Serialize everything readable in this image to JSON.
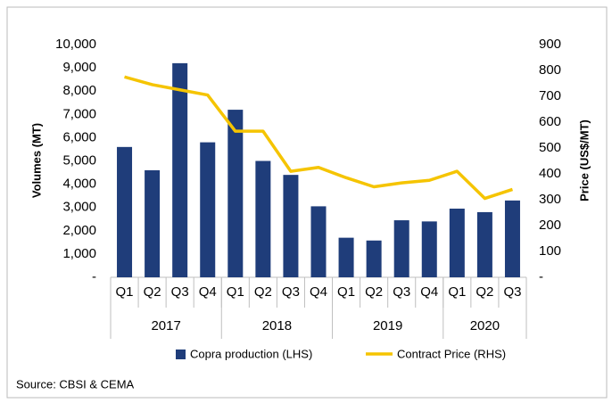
{
  "chart_data": {
    "type": "bar_line",
    "groups": [
      {
        "label": "2017",
        "categories": [
          "Q1",
          "Q2",
          "Q3",
          "Q4"
        ]
      },
      {
        "label": "2018",
        "categories": [
          "Q1",
          "Q2",
          "Q3",
          "Q4"
        ]
      },
      {
        "label": "2019",
        "categories": [
          "Q1",
          "Q2",
          "Q3",
          "Q4"
        ]
      },
      {
        "label": "2020",
        "categories": [
          "Q1",
          "Q2",
          "Q3"
        ]
      }
    ],
    "series": [
      {
        "name": "Copra production (LHS)",
        "color": "#1f3d7a",
        "type": "bar",
        "axis": "y",
        "values": [
          5600,
          4600,
          9200,
          5800,
          7200,
          5000,
          4400,
          3050,
          1700,
          1580,
          2450,
          2400,
          2950,
          2800,
          3300
        ]
      },
      {
        "name": "Contract Price (RHS)",
        "color": "#f5c400",
        "type": "line",
        "axis": "y2",
        "values": [
          775,
          745,
          725,
          705,
          565,
          565,
          410,
          425,
          385,
          350,
          365,
          375,
          410,
          305,
          340
        ]
      }
    ],
    "ylabel": "Volumes (MT)",
    "y2label": "Price (US$/MT)",
    "ylim": [
      0,
      10000
    ],
    "yticks": [
      {
        "value": 0,
        "label": "-"
      },
      {
        "value": 1000,
        "label": "1,000"
      },
      {
        "value": 2000,
        "label": "2,000"
      },
      {
        "value": 3000,
        "label": "3,000"
      },
      {
        "value": 4000,
        "label": "4,000"
      },
      {
        "value": 5000,
        "label": "5,000"
      },
      {
        "value": 6000,
        "label": "6,000"
      },
      {
        "value": 7000,
        "label": "7,000"
      },
      {
        "value": 8000,
        "label": "8,000"
      },
      {
        "value": 9000,
        "label": "9,000"
      },
      {
        "value": 10000,
        "label": "10,000"
      }
    ],
    "y2lim": [
      0,
      900
    ],
    "y2ticks": [
      {
        "value": 0,
        "label": "-"
      },
      100,
      200,
      300,
      400,
      500,
      600,
      700,
      800,
      900
    ],
    "source": "Source: CBSI & CEMA"
  }
}
